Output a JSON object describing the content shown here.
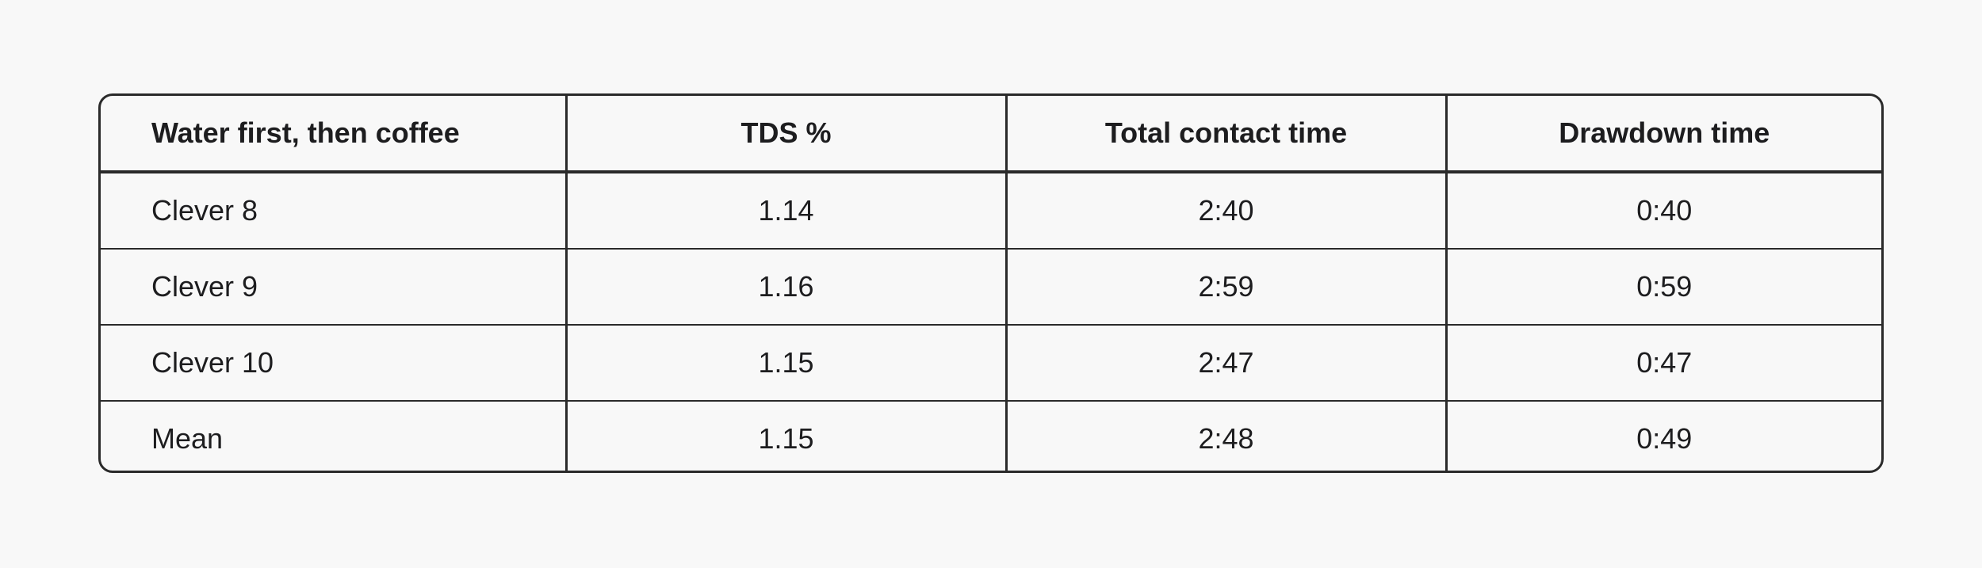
{
  "table": {
    "headers": [
      "Water first, then coffee",
      "TDS %",
      "Total contact time",
      "Drawdown time"
    ],
    "rows": [
      [
        "Clever 8",
        "1.14",
        "2:40",
        "0:40"
      ],
      [
        "Clever 9",
        "1.16",
        "2:59",
        "0:59"
      ],
      [
        "Clever 10",
        "1.15",
        "2:47",
        "0:47"
      ],
      [
        "Mean",
        "1.15",
        "2:48",
        "0:49"
      ]
    ]
  }
}
